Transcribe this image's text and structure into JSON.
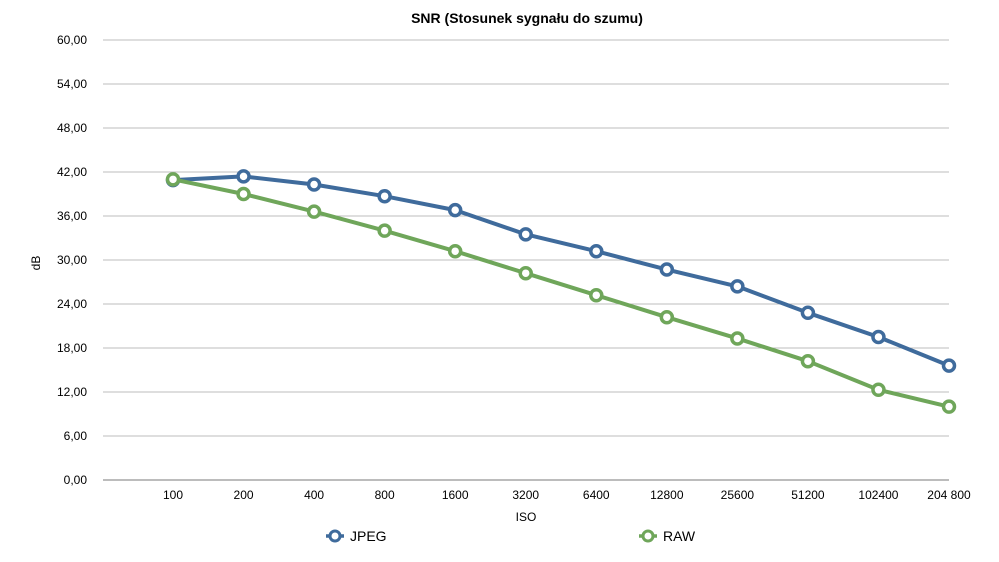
{
  "chart_data": {
    "type": "line",
    "title": "SNR (Stosunek sygnału do szumu)",
    "xlabel": "ISO",
    "ylabel": "dB",
    "categories": [
      "100",
      "200",
      "400",
      "800",
      "1600",
      "3200",
      "6400",
      "12800",
      "25600",
      "51200",
      "102400",
      "204 800"
    ],
    "ylim": [
      0,
      60
    ],
    "yticks": [
      "0,00",
      "6,00",
      "12,00",
      "18,00",
      "24,00",
      "30,00",
      "36,00",
      "42,00",
      "48,00",
      "54,00",
      "60,00"
    ],
    "grid": true,
    "legend_position": "bottom",
    "series": [
      {
        "name": "JPEG",
        "color": "#3F6B9C",
        "values": [
          40.9,
          41.4,
          40.3,
          38.7,
          36.8,
          33.5,
          31.2,
          28.7,
          26.4,
          22.8,
          19.5,
          15.6
        ]
      },
      {
        "name": "RAW",
        "color": "#6FA65A",
        "values": [
          41.0,
          39.0,
          36.6,
          34.0,
          31.2,
          28.2,
          25.2,
          22.2,
          19.3,
          16.2,
          12.3,
          10.0
        ]
      }
    ]
  }
}
